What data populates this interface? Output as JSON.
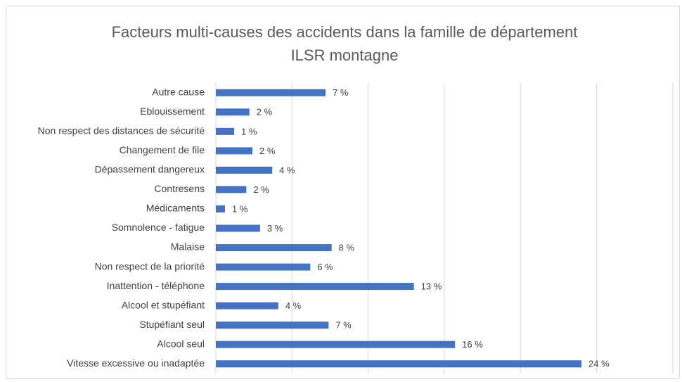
{
  "chart_data": {
    "type": "hbar",
    "title": [
      "Facteurs multi-causes des accidents dans la famille de département",
      "ILSR montagne"
    ],
    "categories": [
      "Autre cause",
      "Eblouissement",
      "Non respect des distances de sécurité",
      "Changement de file",
      "Dépassement dangereux",
      "Contresens",
      "Médicaments",
      "Somnolence - fatigue",
      "Malaise",
      "Non respect de la priorité",
      "Inattention - téléphone",
      "Alcool et stupéfiant",
      "Stupéfiant seul",
      "Alcool seul",
      "Vitesse excessive ou inadaptée"
    ],
    "values": [
      7.2,
      2.2,
      1.2,
      2.4,
      3.7,
      2.0,
      0.6,
      2.9,
      7.6,
      6.2,
      13.0,
      4.1,
      7.4,
      15.7,
      24.0
    ],
    "value_labels": [
      "7 %",
      "2 %",
      "1 %",
      "2 %",
      "4 %",
      "2 %",
      "1 %",
      "3 %",
      "8 %",
      "6 %",
      "13 %",
      "4 %",
      "7 %",
      "16 %",
      "24 %"
    ],
    "color": "#4472c4",
    "xlim": [
      0,
      30
    ],
    "xticks": [
      0,
      5,
      10,
      15,
      20,
      25,
      30
    ],
    "grid": true
  }
}
